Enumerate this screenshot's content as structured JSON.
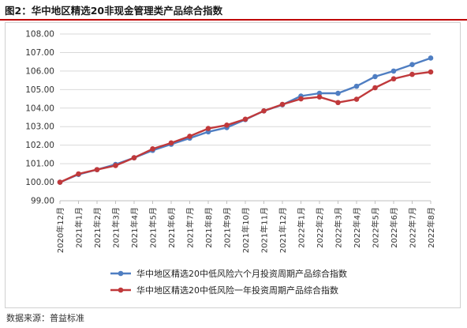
{
  "figure": {
    "title": "图2：华中地区精选20非现金管理类产品综合指数",
    "source": "数据来源：普益标准"
  },
  "colors": {
    "series1": "#4f7ec2",
    "series2": "#c0393b",
    "title_rule": "#c00000"
  },
  "chart_data": {
    "type": "line",
    "title": "",
    "xlabel": "",
    "ylabel": "",
    "ylim": [
      99.0,
      108.0
    ],
    "yticks": [
      "99.00",
      "100.00",
      "101.00",
      "102.00",
      "103.00",
      "104.00",
      "105.00",
      "106.00",
      "107.00",
      "108.00"
    ],
    "grid": true,
    "legend_position": "bottom",
    "categories": [
      "2020年12月",
      "2021年1月",
      "2021年2月",
      "2021年3月",
      "2021年4月",
      "2021年5月",
      "2021年6月",
      "2021年7月",
      "2021年8月",
      "2021年9月",
      "2021年10月",
      "2021年11月",
      "2021年12月",
      "2022年1月",
      "2022年2月",
      "2022年3月",
      "2022年4月",
      "2022年5月",
      "2022年6月",
      "2022年7月",
      "2022年8月"
    ],
    "series": [
      {
        "name": "华中地区精选20中低风险六个月投资周期产品综合指数",
        "values": [
          100.0,
          100.42,
          100.68,
          100.96,
          101.32,
          101.72,
          102.05,
          102.38,
          102.72,
          102.95,
          103.38,
          103.85,
          104.18,
          104.65,
          104.8,
          104.8,
          105.18,
          105.7,
          106.0,
          106.35,
          106.7
        ]
      },
      {
        "name": "华中地区精选20中低风险一年投资周期产品综合指数",
        "values": [
          100.0,
          100.45,
          100.68,
          100.9,
          101.32,
          101.8,
          102.12,
          102.48,
          102.9,
          103.08,
          103.4,
          103.85,
          104.2,
          104.5,
          104.6,
          104.3,
          104.48,
          105.1,
          105.58,
          105.82,
          105.95
        ]
      }
    ]
  }
}
